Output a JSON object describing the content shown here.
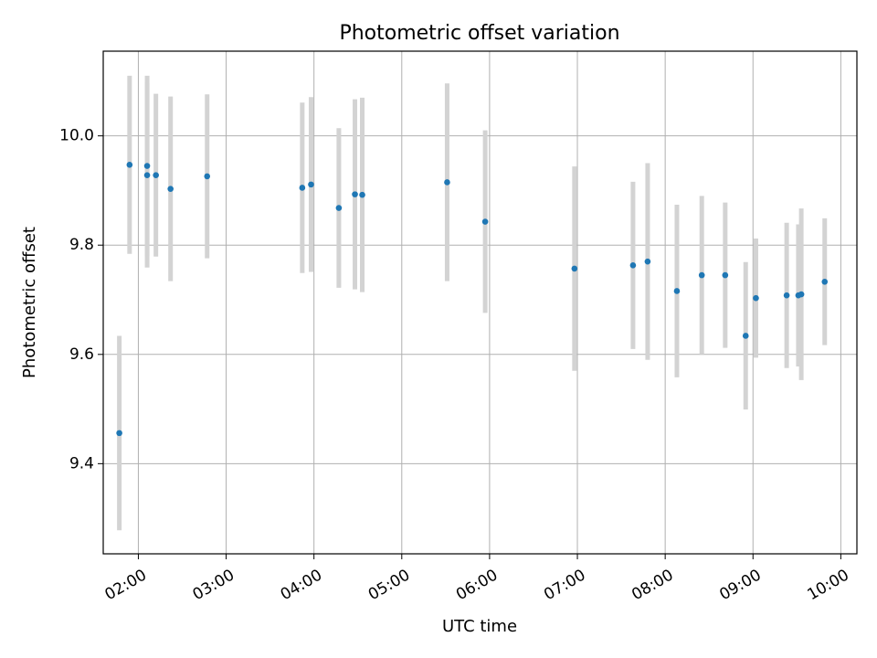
{
  "chart_data": {
    "type": "scatter",
    "title": "Photometric offset variation",
    "xlabel": "UTC time",
    "ylabel": "Photometric offset",
    "grid": true,
    "legend": "none",
    "x_ticks": [
      "02:00",
      "03:00",
      "04:00",
      "05:00",
      "06:00",
      "07:00",
      "08:00",
      "09:00",
      "10:00"
    ],
    "y_ticks": [
      "9.4",
      "9.6",
      "9.8",
      "10.0"
    ],
    "xlim": [
      "01:36",
      "10:11"
    ],
    "ylim": [
      9.235,
      10.155
    ],
    "series": [
      {
        "color": "#1f77b4",
        "errorbar_color": "#d3d3d3",
        "x": [
          "01:47",
          "01:54",
          "02:06",
          "02:06",
          "02:12",
          "02:22",
          "02:47",
          "03:52",
          "03:58",
          "04:17",
          "04:28",
          "04:33",
          "05:31",
          "05:57",
          "06:58",
          "07:38",
          "07:48",
          "08:08",
          "08:25",
          "08:41",
          "08:55",
          "09:02",
          "09:23",
          "09:31",
          "09:33",
          "09:49"
        ],
        "y": [
          9.456,
          9.947,
          9.945,
          9.928,
          9.928,
          9.903,
          9.926,
          9.905,
          9.911,
          9.868,
          9.893,
          9.892,
          9.915,
          9.843,
          9.757,
          9.763,
          9.77,
          9.716,
          9.745,
          9.745,
          9.634,
          9.703,
          9.708,
          9.708,
          9.71,
          9.733
        ],
        "error": [
          0.178,
          0.163,
          0.165,
          0.169,
          0.149,
          0.169,
          0.15,
          0.156,
          0.16,
          0.146,
          0.174,
          0.178,
          0.181,
          0.167,
          0.187,
          0.153,
          0.18,
          0.158,
          0.145,
          0.133,
          0.135,
          0.109,
          0.133,
          0.13,
          0.157,
          0.116
        ]
      }
    ]
  }
}
